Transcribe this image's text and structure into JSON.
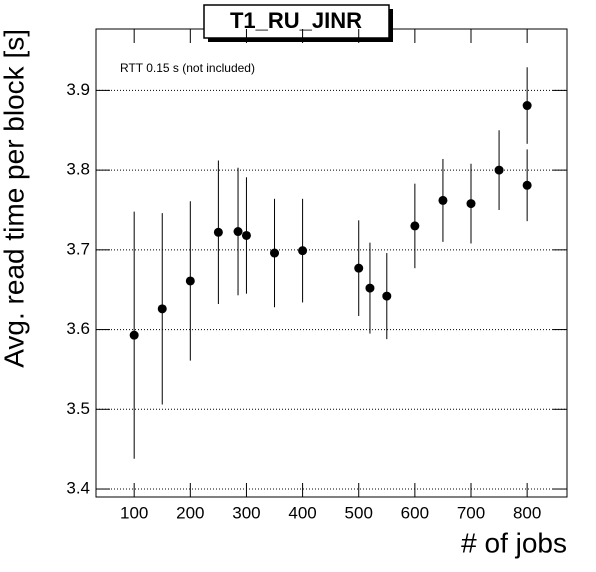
{
  "chart_data": {
    "type": "scatter",
    "title": "T1_RU_JINR",
    "annotation": "RTT 0.15 s (not included)",
    "x_label": "# of jobs",
    "y_label": "Avg. read time per block [s]",
    "x": [
      100,
      150,
      200,
      250,
      285,
      300,
      350,
      400,
      500,
      520,
      550,
      600,
      650,
      700,
      750,
      800,
      800
    ],
    "values": [
      3.593,
      3.626,
      3.661,
      3.722,
      3.723,
      3.718,
      3.696,
      3.699,
      3.677,
      3.652,
      3.642,
      3.73,
      3.762,
      3.758,
      3.8,
      3.881,
      3.781
    ],
    "errors": [
      0.155,
      0.12,
      0.1,
      0.09,
      0.08,
      0.073,
      0.068,
      0.065,
      0.06,
      0.057,
      0.054,
      0.053,
      0.052,
      0.05,
      0.05,
      0.048,
      0.045
    ],
    "color": "#000000",
    "xlim": [
      32,
      871
    ],
    "ylim": [
      3.39,
      3.977
    ],
    "xticks": [
      100,
      200,
      300,
      400,
      500,
      600,
      700,
      800
    ],
    "yticks": [
      3.4,
      3.5,
      3.6,
      3.7,
      3.8,
      3.9
    ],
    "grid": true
  }
}
